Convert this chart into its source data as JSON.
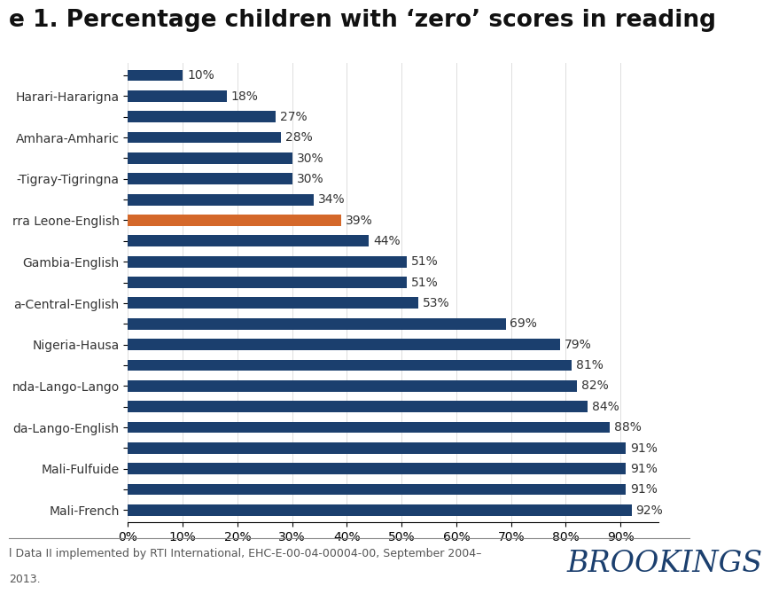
{
  "title": "e 1. Percentage children with ‘zero’ scores in reading",
  "categories": [
    "",
    "Harari-Hararigna",
    "",
    "Amhara-Amharic",
    "",
    "-Tigray-Tigringna",
    "",
    "rra Leone-English",
    "",
    "Gambia-English",
    "",
    "a-Central-English",
    "",
    "Nigeria-Hausa",
    "",
    "nda-Lango-Lango",
    "",
    "da-Lango-English",
    "",
    "Mali-Fulfuide",
    "",
    "Mali-French"
  ],
  "values": [
    10,
    18,
    27,
    28,
    30,
    30,
    34,
    39,
    44,
    51,
    51,
    53,
    69,
    79,
    81,
    82,
    84,
    88,
    91,
    91,
    91,
    92
  ],
  "bar_colors": [
    "#1b3f6e",
    "#1b3f6e",
    "#1b3f6e",
    "#1b3f6e",
    "#1b3f6e",
    "#1b3f6e",
    "#1b3f6e",
    "#d4682a",
    "#1b3f6e",
    "#1b3f6e",
    "#1b3f6e",
    "#1b3f6e",
    "#1b3f6e",
    "#1b3f6e",
    "#1b3f6e",
    "#1b3f6e",
    "#1b3f6e",
    "#1b3f6e",
    "#1b3f6e",
    "#1b3f6e",
    "#1b3f6e",
    "#1b3f6e"
  ],
  "xlim": [
    0,
    100
  ],
  "background_color": "#ffffff",
  "footer_line1": "l Data II implemented by RTI International, EHC-E-00-04-00004-00, September 2004–",
  "footer_line2": "2013.",
  "brookings_text": "BROOKINGS",
  "title_fontsize": 19,
  "bar_height": 0.55,
  "label_fontsize": 10,
  "value_fontsize": 10,
  "tick_fontsize": 10,
  "footer_fontsize": 9,
  "brookings_fontsize": 24
}
